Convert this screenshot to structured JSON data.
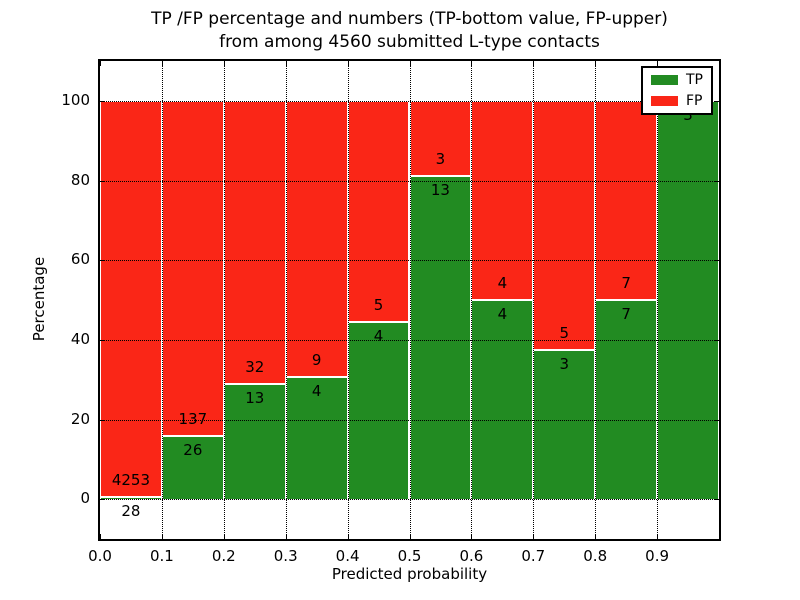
{
  "figure": {
    "background": "#ffffff"
  },
  "chart_data": {
    "type": "bar",
    "stacked": true,
    "normalized": "percent",
    "title": "TP /FP percentage and numbers (TP-bottom value, FP-upper)",
    "title_line2": "from among 4560 submitted L-type contacts",
    "xlabel": "Predicted probability",
    "ylabel": "Percentage",
    "xlim": [
      0.0,
      1.0
    ],
    "ylim": [
      -10,
      110
    ],
    "x_tick_labels": [
      "0.0",
      "0.1",
      "0.2",
      "0.3",
      "0.4",
      "0.5",
      "0.6",
      "0.7",
      "0.8",
      "0.9"
    ],
    "y_ticks": [
      0,
      20,
      40,
      60,
      80,
      100
    ],
    "grid": {
      "style": "dotted",
      "color": "#000000"
    },
    "bin_edges": [
      0.0,
      0.1,
      0.2,
      0.3,
      0.4,
      0.5,
      0.6,
      0.7,
      0.8,
      0.9,
      1.0
    ],
    "series": [
      {
        "name": "TP",
        "color": "#228B22",
        "counts": [
          28,
          26,
          13,
          4,
          4,
          13,
          4,
          3,
          7,
          3
        ],
        "pct": [
          0.65,
          15.95,
          28.89,
          30.77,
          44.44,
          81.25,
          50.0,
          37.5,
          50.0,
          100.0
        ]
      },
      {
        "name": "FP",
        "color": "#fa2617",
        "counts": [
          4253,
          137,
          32,
          9,
          5,
          3,
          4,
          5,
          7,
          0
        ],
        "pct": [
          99.35,
          84.05,
          71.11,
          69.23,
          55.56,
          18.75,
          50.0,
          62.5,
          50.0,
          0.0
        ]
      }
    ],
    "total_contacts": 4560,
    "legend": {
      "location": "upper right",
      "entries": [
        {
          "label": "TP",
          "color": "#228B22"
        },
        {
          "label": "FP",
          "color": "#fa2617"
        }
      ]
    }
  }
}
